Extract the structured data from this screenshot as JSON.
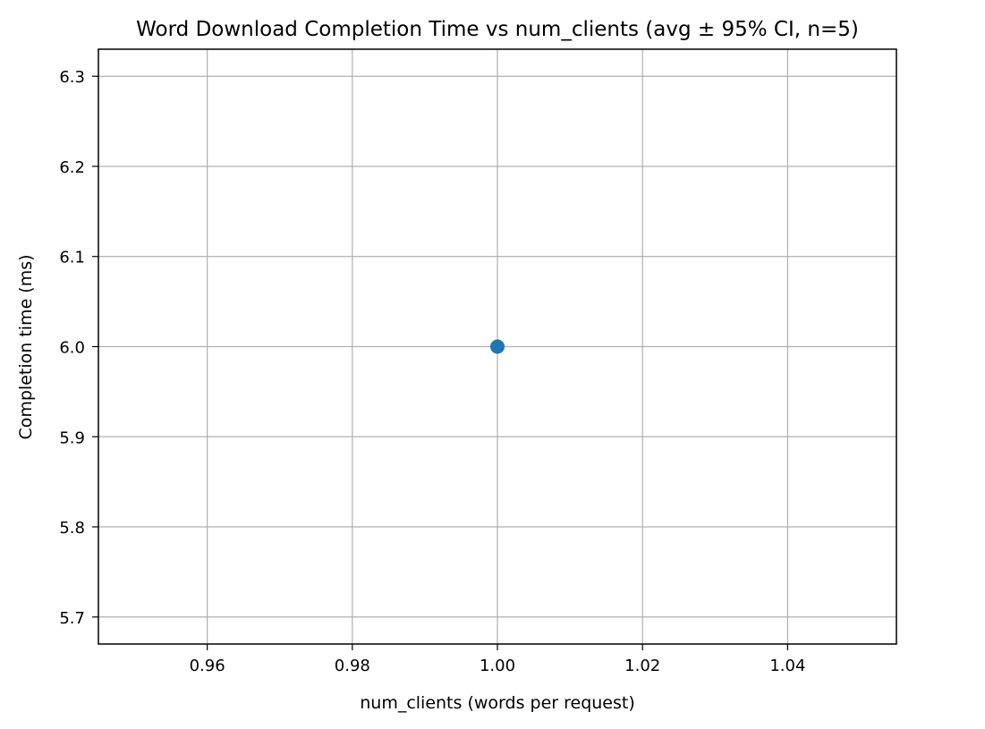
{
  "chart_data": {
    "type": "scatter",
    "title": "Word Download Completion Time vs num_clients (avg ± 95% CI, n=5)",
    "xlabel": "num_clients (words per request)",
    "ylabel": "Completion time (ms)",
    "xlim": [
      0.945,
      1.055
    ],
    "ylim": [
      5.67,
      6.33
    ],
    "xticks": [
      0.96,
      0.98,
      1.0,
      1.02,
      1.04
    ],
    "xtick_labels": [
      "0.96",
      "0.98",
      "1.00",
      "1.02",
      "1.04"
    ],
    "yticks": [
      5.7,
      5.8,
      5.9,
      6.0,
      6.1,
      6.2,
      6.3
    ],
    "ytick_labels": [
      "5.7",
      "5.8",
      "5.9",
      "6.0",
      "6.1",
      "6.2",
      "6.3"
    ],
    "grid": true,
    "series": [
      {
        "points": [
          {
            "x": 1.0,
            "y": 6.0,
            "ci_low": 6.0,
            "ci_high": 6.0
          }
        ],
        "color": "#1f77b4"
      }
    ]
  }
}
